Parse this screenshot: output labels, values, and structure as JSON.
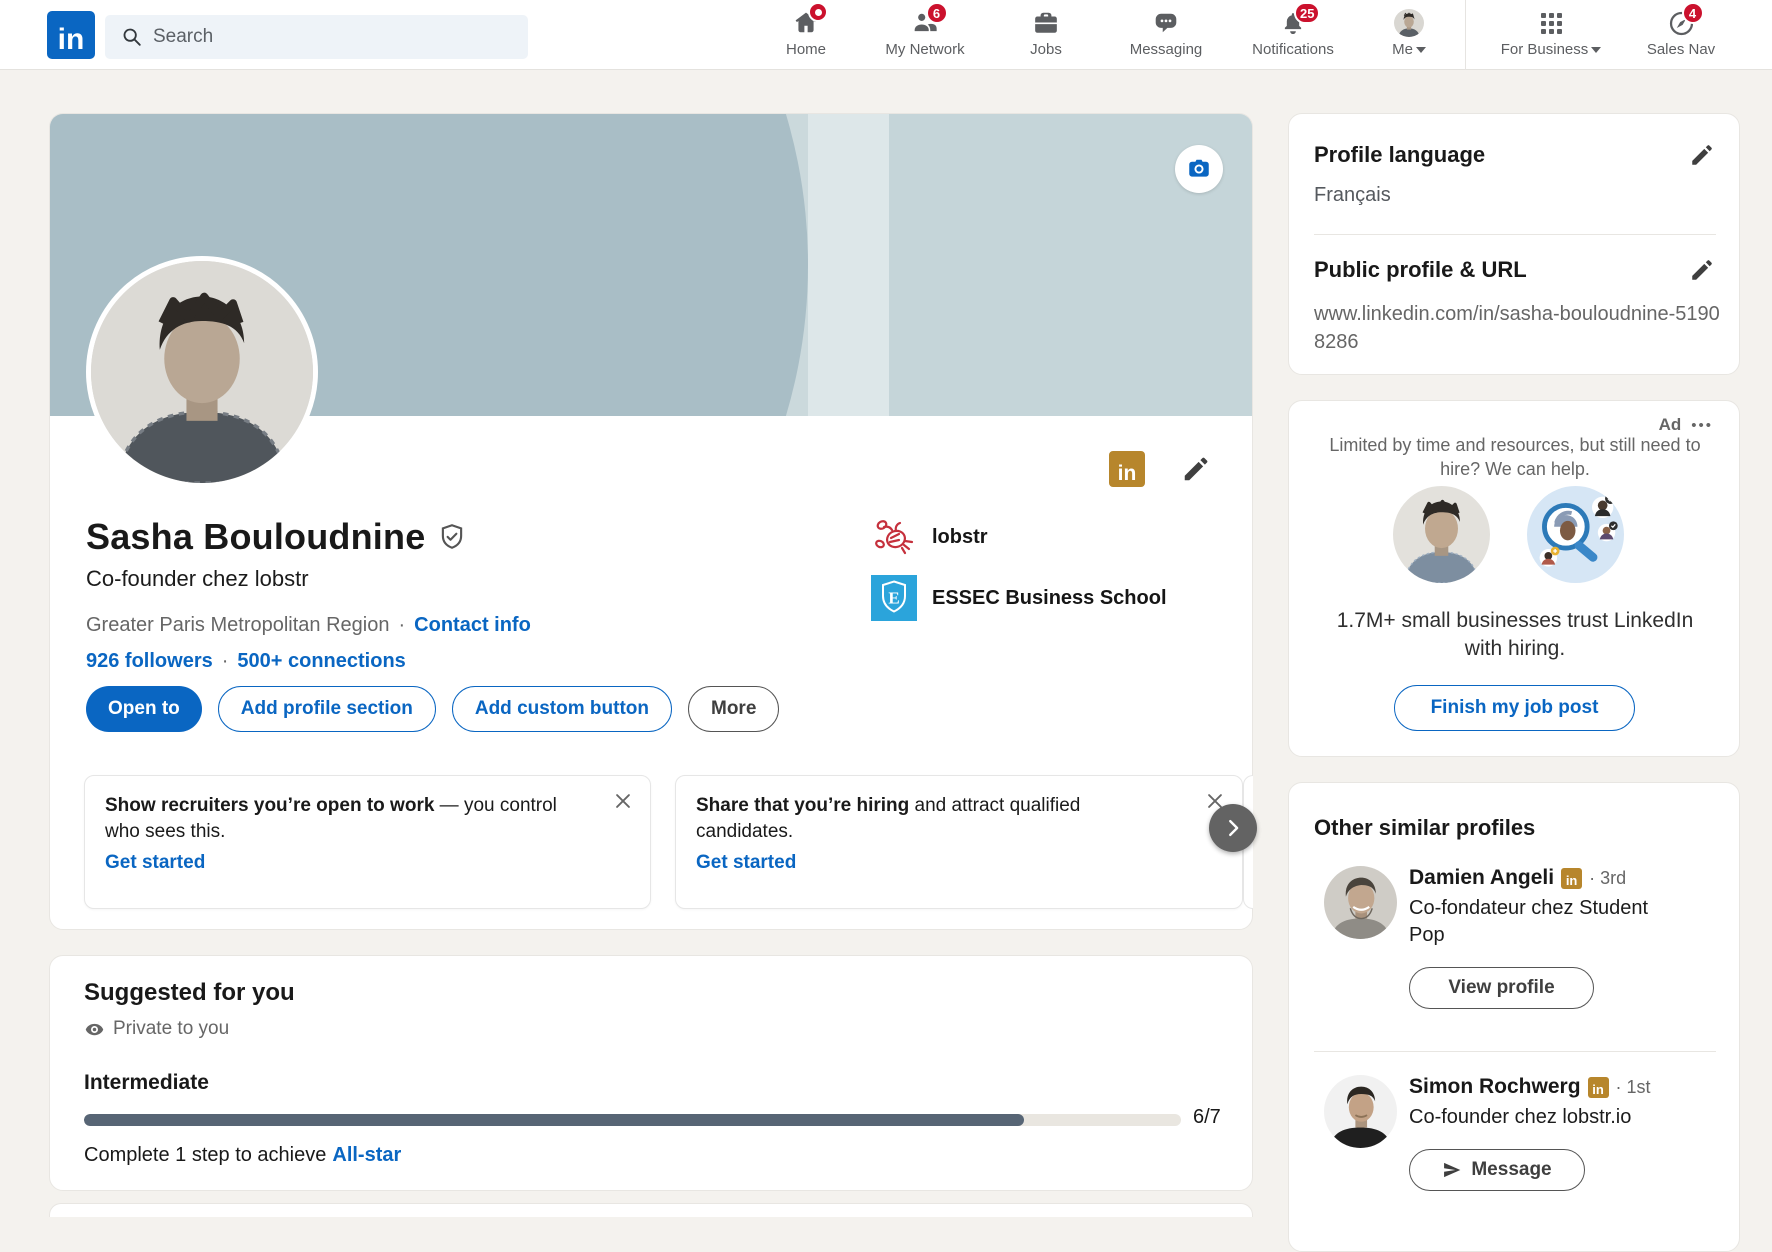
{
  "colors": {
    "accent": "#0a66c2",
    "notification_red": "#cb112d",
    "premium_gold": "#b7862c",
    "progress_fill": "#576575",
    "essec_blue": "#2ba4db",
    "lobstr_red": "#c5303c"
  },
  "nav": {
    "logo_text": "in",
    "search_placeholder": "Search",
    "home": "Home",
    "my_network": "My Network",
    "jobs": "Jobs",
    "messaging": "Messaging",
    "notifications": "Notifications",
    "me": "Me",
    "for_business": "For Business",
    "sales_nav": "Sales Nav",
    "badges": {
      "my_network": "6",
      "notifications": "25",
      "sales_nav": "4"
    }
  },
  "profile": {
    "name": "Sasha Bouloudnine",
    "headline": "Co-founder chez lobstr",
    "location": "Greater Paris Metropolitan Region",
    "separator": "·",
    "contact_info": "Contact info",
    "followers": "926 followers",
    "connections": "500+ connections",
    "company": "lobstr",
    "school": "ESSEC Business School",
    "badge_text": "in",
    "actions": {
      "open_to": "Open to",
      "add_profile_section": "Add profile section",
      "add_custom_button": "Add custom button",
      "more": "More"
    }
  },
  "carousel": {
    "card1": {
      "bold": "Show recruiters you’re open to work",
      "rest": " — you control who sees this.",
      "link": "Get started"
    },
    "card2": {
      "bold": "Share that you’re hiring",
      "rest": " and attract qualified candidates.",
      "link": "Get started"
    }
  },
  "suggested": {
    "title": "Suggested for you",
    "privacy": "Private to you",
    "level": "Intermediate",
    "progress_label": "6/7",
    "progress_percent": 85.7,
    "complete_prefix": "Complete 1 step to achieve",
    "complete_link": "All-star"
  },
  "sidebar": {
    "language": {
      "title": "Profile language",
      "value": "Français"
    },
    "public_url": {
      "title": "Public profile & URL",
      "value": "www.linkedin.com/in/sasha-bouloudnine-51908286"
    },
    "ad": {
      "label": "Ad",
      "menu_dots": "•••",
      "intro": "Limited by time and resources, but still need to hire? We can help.",
      "headline": "1.7M+ small businesses trust LinkedIn with hiring.",
      "cta": "Finish my job post"
    },
    "similar": {
      "title": "Other similar profiles",
      "people": [
        {
          "name": "Damien Angeli",
          "badge": "in",
          "degree": "· 3rd",
          "headline": "Co-fondateur chez Student Pop",
          "action": "View profile"
        },
        {
          "name": "Simon Rochwerg",
          "badge": "in",
          "degree": "· 1st",
          "headline": "Co-founder chez lobstr.io",
          "action": "Message"
        }
      ]
    }
  }
}
